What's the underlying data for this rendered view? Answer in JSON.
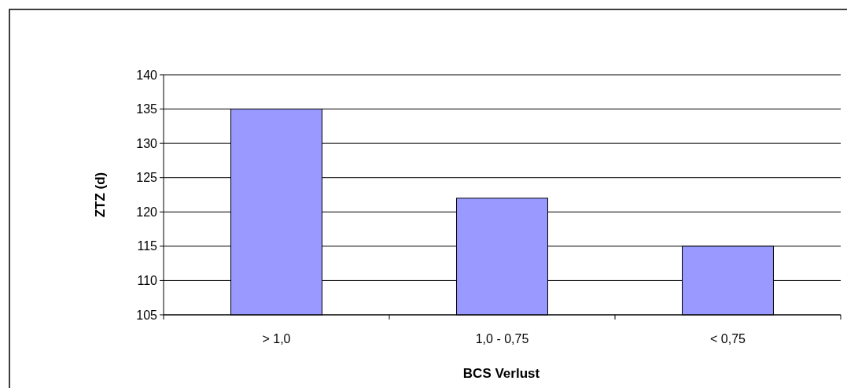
{
  "chart_data": {
    "type": "bar",
    "xlabel": "BCS Verlust",
    "ylabel": "ZTZ (d)",
    "categories": [
      "> 1,0",
      "1,0 - 0,75",
      "< 0,75"
    ],
    "values": [
      135,
      122,
      115
    ],
    "color": "#9999ff",
    "ylim": [
      105,
      140
    ],
    "yticks": [
      105,
      110,
      115,
      120,
      125,
      130,
      135,
      140
    ],
    "grid": "y"
  }
}
